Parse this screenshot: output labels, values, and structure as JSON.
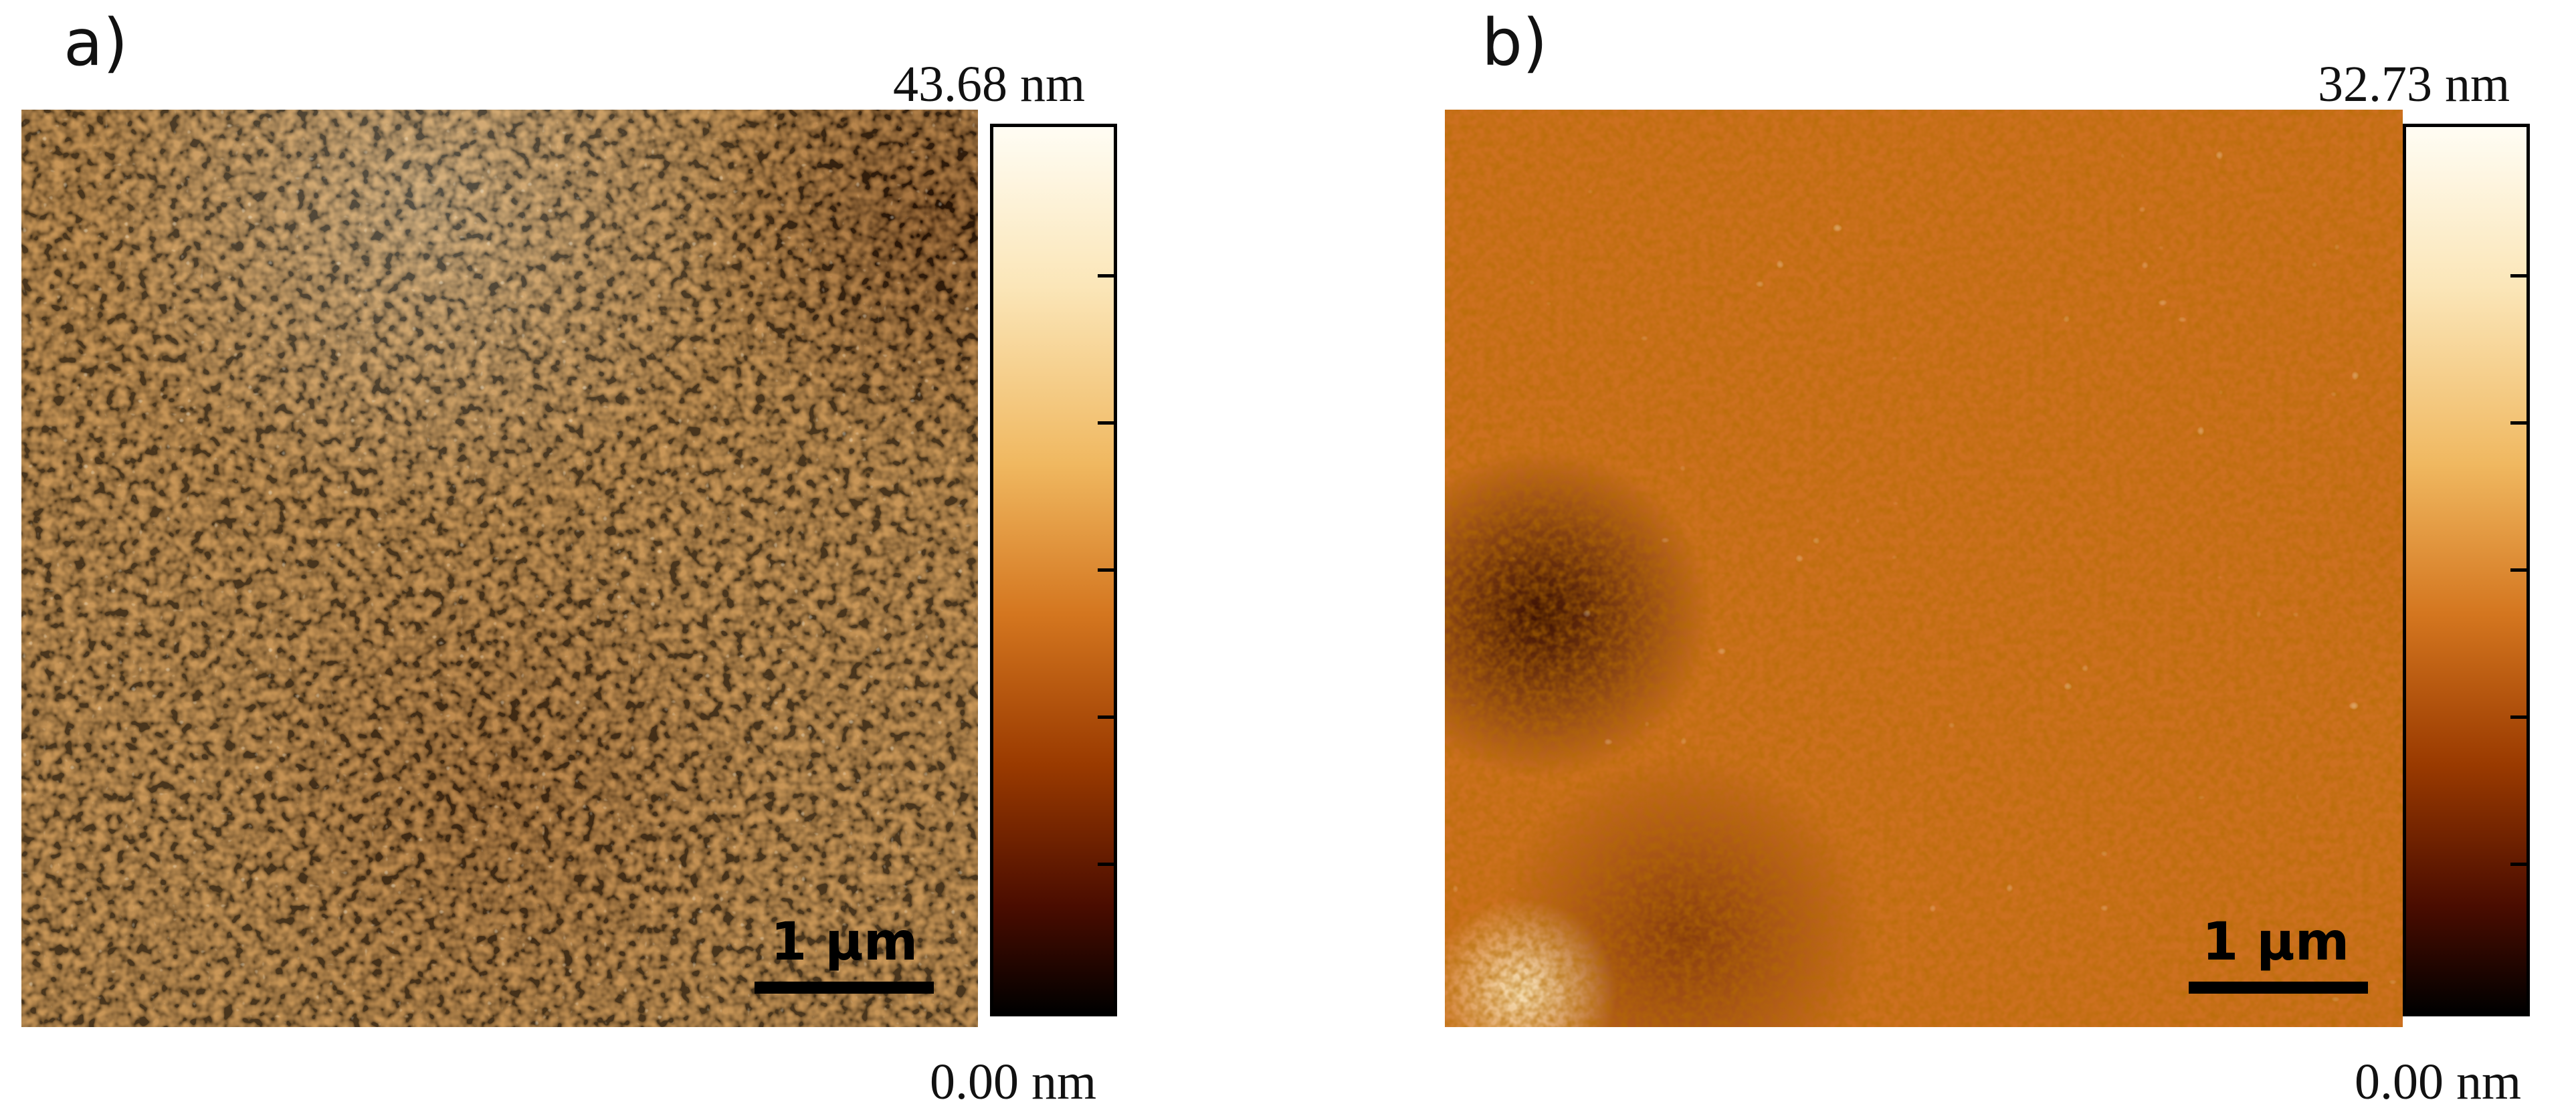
{
  "panels": [
    {
      "label": "a)",
      "scale_max": "43.68 nm",
      "scale_min": "0.00 nm",
      "scalebar_label": "1 μm"
    },
    {
      "label": "b)",
      "scale_max": "32.73 nm",
      "scale_min": "0.00 nm",
      "scalebar_label": "1 μm"
    }
  ],
  "colors": {
    "colormap": [
      "#000000",
      "#4a0c00",
      "#9a3a00",
      "#d4761f",
      "#f0b860",
      "#fbe6b8",
      "#fffdf4"
    ],
    "panel_a_base": "#d69a52",
    "panel_b_base": "#c96a12"
  }
}
